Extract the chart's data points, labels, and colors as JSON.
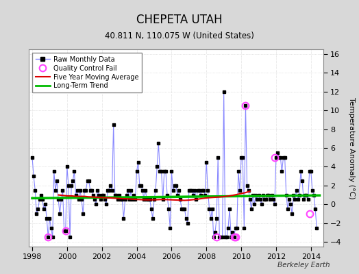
{
  "title": "CHEPETA UTAH",
  "subtitle": "40.811 N, 110.075 W (United States)",
  "ylabel": "Temperature Anomaly (°C)",
  "attribution": "Berkeley Earth",
  "xlim": [
    1997.8,
    2014.7
  ],
  "ylim": [
    -4.5,
    16.5
  ],
  "yticks": [
    -4,
    -2,
    0,
    2,
    4,
    6,
    8,
    10,
    12,
    14,
    16
  ],
  "xticks": [
    1998,
    2000,
    2002,
    2004,
    2006,
    2008,
    2010,
    2012,
    2014
  ],
  "bg_color": "#d8d8d8",
  "plot_bg_color": "#ffffff",
  "raw_line_color": "#8888ff",
  "raw_marker_color": "#000000",
  "ma_color": "#dd0000",
  "trend_color": "#00bb00",
  "qc_color": "#ff44ff",
  "raw_data_x": [
    1998.0,
    1998.083,
    1998.167,
    1998.25,
    1998.333,
    1998.417,
    1998.5,
    1998.583,
    1998.667,
    1998.75,
    1998.833,
    1998.917,
    1999.0,
    1999.083,
    1999.167,
    1999.25,
    1999.333,
    1999.417,
    1999.5,
    1999.583,
    1999.667,
    1999.75,
    1999.833,
    1999.917,
    2000.0,
    2000.083,
    2000.167,
    2000.25,
    2000.333,
    2000.417,
    2000.5,
    2000.583,
    2000.667,
    2000.75,
    2000.833,
    2000.917,
    2001.0,
    2001.083,
    2001.167,
    2001.25,
    2001.333,
    2001.417,
    2001.5,
    2001.583,
    2001.667,
    2001.75,
    2001.833,
    2001.917,
    2002.0,
    2002.083,
    2002.167,
    2002.25,
    2002.333,
    2002.417,
    2002.5,
    2002.583,
    2002.667,
    2002.75,
    2002.833,
    2002.917,
    2003.0,
    2003.083,
    2003.167,
    2003.25,
    2003.333,
    2003.417,
    2003.5,
    2003.583,
    2003.667,
    2003.75,
    2003.833,
    2003.917,
    2004.0,
    2004.083,
    2004.167,
    2004.25,
    2004.333,
    2004.417,
    2004.5,
    2004.583,
    2004.667,
    2004.75,
    2004.833,
    2004.917,
    2005.0,
    2005.083,
    2005.167,
    2005.25,
    2005.333,
    2005.417,
    2005.5,
    2005.583,
    2005.667,
    2005.75,
    2005.833,
    2005.917,
    2006.0,
    2006.083,
    2006.167,
    2006.25,
    2006.333,
    2006.417,
    2006.5,
    2006.583,
    2006.667,
    2006.75,
    2006.833,
    2006.917,
    2007.0,
    2007.083,
    2007.167,
    2007.25,
    2007.333,
    2007.417,
    2007.5,
    2007.583,
    2007.667,
    2007.75,
    2007.833,
    2007.917,
    2008.0,
    2008.083,
    2008.167,
    2008.25,
    2008.333,
    2008.417,
    2008.5,
    2008.583,
    2008.667,
    2008.75,
    2008.833,
    2008.917,
    2009.0,
    2009.083,
    2009.167,
    2009.25,
    2009.333,
    2009.417,
    2009.5,
    2009.583,
    2009.667,
    2009.75,
    2009.833,
    2009.917,
    2010.0,
    2010.083,
    2010.167,
    2010.25,
    2010.333,
    2010.417,
    2010.5,
    2010.583,
    2010.667,
    2010.75,
    2010.833,
    2010.917,
    2011.0,
    2011.083,
    2011.167,
    2011.25,
    2011.333,
    2011.417,
    2011.5,
    2011.583,
    2011.667,
    2011.75,
    2011.833,
    2011.917,
    2012.0,
    2012.083,
    2012.167,
    2012.25,
    2012.333,
    2012.417,
    2012.5,
    2012.583,
    2012.667,
    2012.75,
    2012.833,
    2012.917,
    2013.0,
    2013.083,
    2013.167,
    2013.25,
    2013.333,
    2013.417,
    2013.5,
    2013.583,
    2013.667,
    2013.75,
    2013.833,
    2013.917,
    2014.0,
    2014.083,
    2014.167,
    2014.25,
    2014.333
  ],
  "raw_data_y": [
    5.0,
    3.0,
    1.5,
    -1.0,
    -0.5,
    0.5,
    1.0,
    0.5,
    -0.5,
    0.0,
    -1.5,
    -3.5,
    -1.5,
    -2.5,
    -3.5,
    3.5,
    1.5,
    2.5,
    0.5,
    -1.0,
    0.5,
    1.5,
    -2.8,
    -2.8,
    4.0,
    2.0,
    -3.5,
    2.0,
    2.5,
    3.5,
    1.0,
    1.5,
    0.5,
    1.5,
    0.5,
    -1.0,
    1.5,
    1.5,
    2.5,
    2.5,
    1.5,
    1.5,
    1.0,
    0.5,
    0.0,
    1.5,
    1.0,
    0.5,
    1.0,
    1.0,
    0.5,
    0.0,
    1.5,
    1.5,
    2.0,
    1.5,
    8.5,
    1.0,
    1.0,
    0.5,
    1.0,
    0.5,
    0.5,
    -1.5,
    0.5,
    1.0,
    1.5,
    0.5,
    1.5,
    0.5,
    1.0,
    0.5,
    3.5,
    4.5,
    2.0,
    2.0,
    1.5,
    0.5,
    1.5,
    0.5,
    0.5,
    0.5,
    -0.5,
    -1.5,
    0.5,
    1.5,
    4.0,
    6.5,
    3.5,
    3.5,
    0.5,
    3.5,
    3.5,
    1.0,
    -0.5,
    -2.5,
    3.5,
    1.5,
    2.0,
    2.0,
    1.0,
    1.5,
    0.5,
    -0.5,
    -0.5,
    -0.5,
    -1.5,
    -2.0,
    1.5,
    1.5,
    1.5,
    1.0,
    1.5,
    0.5,
    1.5,
    1.5,
    1.0,
    1.5,
    1.5,
    1.0,
    4.5,
    1.5,
    -0.5,
    -1.5,
    -0.5,
    -3.5,
    -3.0,
    -1.5,
    5.0,
    -3.5,
    -3.5,
    -3.5,
    12.0,
    -3.5,
    -3.5,
    -2.5,
    -0.5,
    -3.5,
    -3.0,
    -3.5,
    -2.5,
    -2.5,
    3.5,
    1.5,
    5.0,
    5.0,
    -2.5,
    10.5,
    2.0,
    1.5,
    0.5,
    -0.5,
    1.0,
    0.0,
    1.0,
    0.5,
    1.0,
    0.5,
    0.0,
    1.0,
    0.5,
    0.5,
    1.0,
    1.0,
    0.5,
    1.0,
    0.5,
    0.0,
    5.0,
    5.5,
    5.0,
    5.0,
    3.5,
    5.0,
    5.0,
    1.0,
    -0.5,
    0.5,
    0.0,
    -1.0,
    1.0,
    0.5,
    1.5,
    0.5,
    1.0,
    3.5,
    2.5,
    0.5,
    1.0,
    1.0,
    0.5,
    3.5,
    3.5,
    1.5,
    1.0,
    -0.5,
    -2.5
  ],
  "qc_fail_x": [
    1998.917,
    1999.917,
    2008.583,
    2009.583,
    2009.667,
    2010.25,
    2011.917,
    2013.917
  ],
  "qc_fail_y": [
    -3.5,
    -2.8,
    -3.5,
    -3.5,
    -3.5,
    10.5,
    5.0,
    -1.0
  ],
  "ma_x": [
    1999.5,
    1999.75,
    2000.0,
    2000.25,
    2000.5,
    2000.75,
    2001.0,
    2001.25,
    2001.5,
    2001.75,
    2002.0,
    2002.25,
    2002.5,
    2002.75,
    2003.0,
    2003.25,
    2003.5,
    2003.75,
    2004.0,
    2004.25,
    2004.5,
    2004.75,
    2005.0,
    2005.25,
    2005.5,
    2005.75,
    2006.0,
    2006.25,
    2006.5,
    2006.75,
    2007.0,
    2007.25,
    2007.5,
    2007.75,
    2008.0,
    2008.25,
    2008.5,
    2008.75,
    2009.0,
    2009.25,
    2009.5,
    2009.75,
    2010.0,
    2010.25,
    2010.5
  ],
  "ma_y": [
    1.0,
    0.95,
    0.9,
    0.9,
    0.85,
    0.85,
    0.85,
    0.8,
    0.78,
    0.75,
    0.72,
    0.7,
    0.68,
    0.65,
    0.63,
    0.6,
    0.58,
    0.55,
    0.52,
    0.5,
    0.48,
    0.48,
    0.48,
    0.5,
    0.52,
    0.5,
    0.48,
    0.46,
    0.44,
    0.42,
    0.45,
    0.5,
    0.55,
    0.62,
    0.68,
    0.72,
    0.75,
    0.78,
    0.82,
    0.88,
    0.95,
    1.05,
    1.15,
    1.25,
    1.4
  ],
  "trend_x": [
    1998.0,
    2014.5
  ],
  "trend_y": [
    0.65,
    0.95
  ]
}
